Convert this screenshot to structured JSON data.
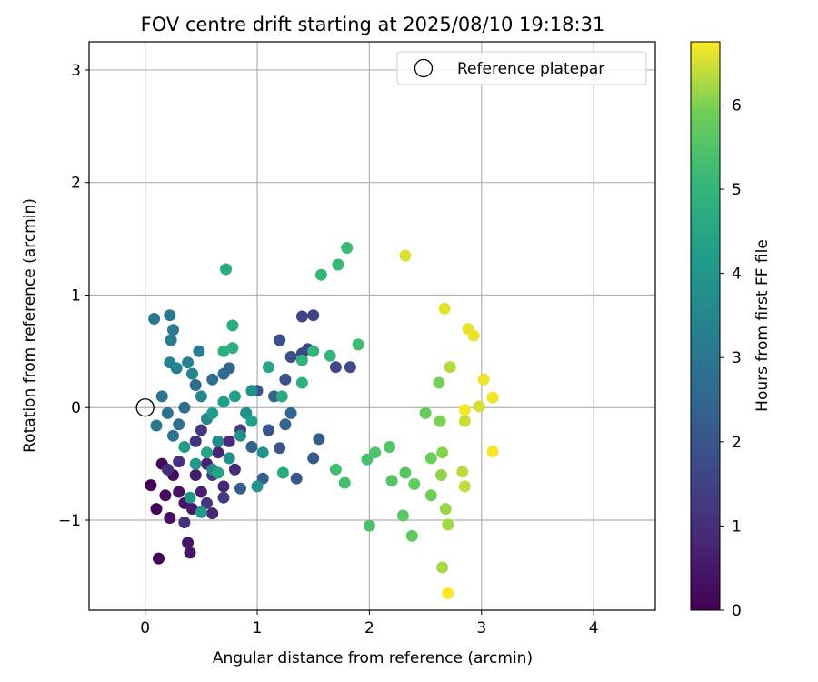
{
  "chart_data": {
    "type": "scatter",
    "title": "FOV centre drift starting at 2025/08/10 19:18:31",
    "xlabel": "Angular distance from reference (arcmin)",
    "ylabel": "Rotation from reference (arcmin)",
    "xlim": [
      -0.5,
      4.55
    ],
    "ylim": [
      -1.8,
      3.25
    ],
    "xticks": [
      0,
      1,
      2,
      3,
      4
    ],
    "xtick_labels": [
      "0",
      "1",
      "2",
      "3",
      "4"
    ],
    "yticks": [
      -1,
      0,
      1,
      2,
      3
    ],
    "ytick_labels": [
      "−1",
      "0",
      "1",
      "2",
      "3"
    ],
    "grid": true,
    "legend": {
      "position": "top-right",
      "label": "Reference platepar"
    },
    "reference_point": {
      "x": 0,
      "y": 0
    },
    "colorbar": {
      "label": "Hours from first FF file",
      "range": [
        0,
        6.75
      ],
      "ticks": [
        0,
        1,
        2,
        3,
        4,
        5,
        6
      ],
      "tick_labels": [
        "0",
        "1",
        "2",
        "3",
        "4",
        "5",
        "6"
      ],
      "colormap": "viridis"
    },
    "series": [
      {
        "points": [
          [
            0.05,
            -0.69,
            0.0
          ],
          [
            0.12,
            -1.34,
            0.05
          ],
          [
            0.1,
            -0.9,
            0.1
          ],
          [
            0.15,
            -0.5,
            0.15
          ],
          [
            0.18,
            -0.78,
            0.2
          ],
          [
            0.22,
            -0.98,
            0.25
          ],
          [
            0.25,
            -0.6,
            0.3
          ],
          [
            0.3,
            -0.75,
            0.35
          ],
          [
            0.35,
            -0.85,
            0.4
          ],
          [
            0.4,
            -1.29,
            0.45
          ],
          [
            0.38,
            -1.2,
            0.5
          ],
          [
            0.42,
            -0.9,
            0.55
          ],
          [
            0.45,
            -0.6,
            0.6
          ],
          [
            0.5,
            -0.75,
            0.65
          ],
          [
            0.55,
            -0.5,
            0.7
          ],
          [
            0.6,
            -0.94,
            0.75
          ],
          [
            0.65,
            -0.4,
            0.8
          ],
          [
            0.7,
            -0.7,
            0.85
          ],
          [
            0.75,
            -0.3,
            0.9
          ],
          [
            0.8,
            -0.55,
            0.95
          ],
          [
            0.2,
            -0.55,
            1.0
          ],
          [
            0.3,
            -0.48,
            1.05
          ],
          [
            0.35,
            -1.02,
            1.1
          ],
          [
            0.45,
            -0.3,
            1.15
          ],
          [
            0.5,
            -0.2,
            1.2
          ],
          [
            0.55,
            -0.85,
            1.25
          ],
          [
            0.6,
            -0.6,
            1.3
          ],
          [
            0.7,
            -0.8,
            1.35
          ],
          [
            0.85,
            -0.2,
            1.4
          ],
          [
            0.9,
            -0.05,
            1.45
          ],
          [
            1.5,
            0.82,
            1.5
          ],
          [
            1.4,
            0.81,
            1.55
          ],
          [
            1.4,
            0.48,
            1.6
          ],
          [
            1.45,
            0.52,
            1.65
          ],
          [
            1.7,
            0.36,
            1.7
          ],
          [
            1.83,
            0.36,
            1.75
          ],
          [
            1.3,
            0.45,
            1.8
          ],
          [
            1.2,
            0.6,
            1.85
          ],
          [
            1.25,
            0.25,
            1.9
          ],
          [
            1.0,
            0.15,
            1.95
          ],
          [
            1.1,
            -0.2,
            2.0
          ],
          [
            1.2,
            -0.36,
            2.05
          ],
          [
            1.35,
            -0.63,
            2.1
          ],
          [
            1.5,
            -0.45,
            2.15
          ],
          [
            1.55,
            -0.28,
            2.2
          ],
          [
            0.85,
            -0.72,
            2.25
          ],
          [
            1.05,
            -0.63,
            2.3
          ],
          [
            0.95,
            -0.35,
            2.35
          ],
          [
            1.15,
            0.1,
            2.4
          ],
          [
            1.25,
            -0.15,
            2.45
          ],
          [
            1.3,
            -0.05,
            2.5
          ],
          [
            0.75,
            0.35,
            2.55
          ],
          [
            0.7,
            0.3,
            2.6
          ],
          [
            0.6,
            0.25,
            2.65
          ],
          [
            0.45,
            0.2,
            2.7
          ],
          [
            0.35,
            0.0,
            2.75
          ],
          [
            0.3,
            -0.15,
            2.8
          ],
          [
            0.25,
            -0.25,
            2.85
          ],
          [
            0.2,
            -0.05,
            2.9
          ],
          [
            0.15,
            0.1,
            2.95
          ],
          [
            0.1,
            -0.16,
            3.0
          ],
          [
            0.08,
            0.79,
            3.05
          ],
          [
            0.22,
            0.82,
            3.1
          ],
          [
            0.25,
            0.69,
            3.15
          ],
          [
            0.23,
            0.6,
            3.2
          ],
          [
            0.48,
            0.5,
            3.25
          ],
          [
            0.38,
            0.4,
            3.3
          ],
          [
            0.28,
            0.35,
            3.35
          ],
          [
            0.22,
            0.4,
            3.4
          ],
          [
            0.42,
            0.3,
            3.45
          ],
          [
            0.5,
            0.1,
            3.5
          ],
          [
            0.55,
            -0.1,
            3.55
          ],
          [
            0.65,
            -0.3,
            3.6
          ],
          [
            0.6,
            -0.55,
            3.65
          ],
          [
            0.75,
            -0.45,
            3.7
          ],
          [
            0.85,
            -0.25,
            3.75
          ],
          [
            0.9,
            -0.05,
            3.8
          ],
          [
            0.95,
            0.15,
            3.85
          ],
          [
            1.0,
            -0.7,
            3.9
          ],
          [
            1.05,
            -0.4,
            3.95
          ],
          [
            0.4,
            -0.8,
            4.0
          ],
          [
            0.5,
            -0.93,
            4.05
          ],
          [
            0.45,
            -0.5,
            4.1
          ],
          [
            0.35,
            -0.35,
            4.15
          ],
          [
            0.6,
            -0.05,
            4.2
          ],
          [
            0.7,
            0.05,
            4.25
          ],
          [
            0.8,
            0.1,
            4.3
          ],
          [
            0.95,
            -0.12,
            4.35
          ],
          [
            0.65,
            -0.58,
            4.4
          ],
          [
            0.55,
            -0.4,
            4.45
          ],
          [
            1.1,
            0.36,
            4.5
          ],
          [
            1.23,
            -0.58,
            4.55
          ],
          [
            1.22,
            0.1,
            4.6
          ],
          [
            0.78,
            0.73,
            4.65
          ],
          [
            0.72,
            1.23,
            4.7
          ],
          [
            0.78,
            0.53,
            4.75
          ],
          [
            0.7,
            0.5,
            4.8
          ],
          [
            1.4,
            0.22,
            4.85
          ],
          [
            1.4,
            0.42,
            4.9
          ],
          [
            1.5,
            0.5,
            4.95
          ],
          [
            1.65,
            0.46,
            5.0
          ],
          [
            1.57,
            1.18,
            5.05
          ],
          [
            1.72,
            1.27,
            5.1
          ],
          [
            1.8,
            1.42,
            5.15
          ],
          [
            1.9,
            0.56,
            5.2
          ],
          [
            1.7,
            -0.55,
            5.25
          ],
          [
            1.78,
            -0.67,
            5.3
          ],
          [
            1.98,
            -0.46,
            5.35
          ],
          [
            2.0,
            -1.05,
            5.4
          ],
          [
            2.05,
            -0.4,
            5.45
          ],
          [
            2.18,
            -0.35,
            5.5
          ],
          [
            2.2,
            -0.65,
            5.55
          ],
          [
            2.32,
            -0.58,
            5.6
          ],
          [
            2.3,
            -0.96,
            5.65
          ],
          [
            2.38,
            -1.14,
            5.7
          ],
          [
            2.4,
            -0.68,
            5.75
          ],
          [
            2.5,
            -0.05,
            5.8
          ],
          [
            2.55,
            -0.45,
            5.85
          ],
          [
            2.55,
            -0.78,
            5.9
          ],
          [
            2.62,
            0.22,
            5.95
          ],
          [
            2.63,
            -0.12,
            6.0
          ],
          [
            2.65,
            -0.4,
            6.05
          ],
          [
            2.64,
            -0.6,
            6.1
          ],
          [
            2.68,
            -0.9,
            6.15
          ],
          [
            2.7,
            -1.04,
            6.2
          ],
          [
            2.65,
            -1.42,
            6.25
          ],
          [
            2.72,
            0.36,
            6.3
          ],
          [
            2.83,
            -0.57,
            6.35
          ],
          [
            2.85,
            -0.7,
            6.4
          ],
          [
            2.85,
            -0.12,
            6.45
          ],
          [
            2.98,
            0.01,
            6.5
          ],
          [
            2.32,
            1.35,
            6.55
          ],
          [
            2.67,
            0.88,
            6.6
          ],
          [
            2.88,
            0.7,
            6.62
          ],
          [
            2.93,
            0.64,
            6.64
          ],
          [
            3.02,
            0.25,
            6.66
          ],
          [
            3.1,
            0.09,
            6.68
          ],
          [
            2.85,
            -0.02,
            6.7
          ],
          [
            3.1,
            -0.39,
            6.72
          ],
          [
            2.7,
            -1.65,
            6.74
          ]
        ]
      }
    ]
  }
}
